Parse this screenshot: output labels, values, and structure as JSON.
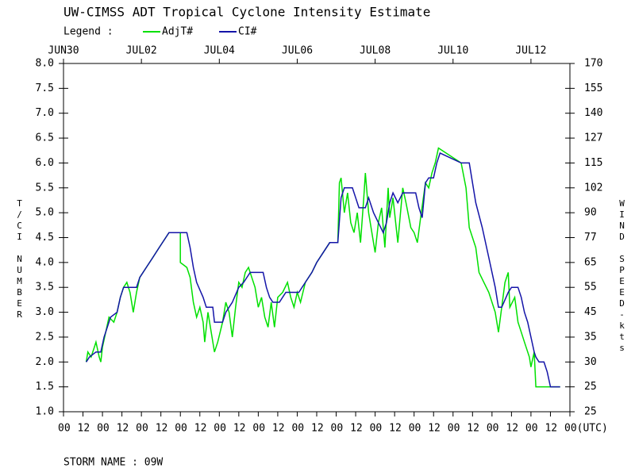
{
  "chart_data": {
    "type": "line",
    "title": "UW-CIMSS ADT Tropical Cyclone Intensity Estimate",
    "legend_label": "Legend :",
    "y_label": "T/CI NUMBER",
    "y2_label": "WIND SPEED-kts",
    "footer": "STORM NAME : 09W",
    "xlim": [
      0,
      312
    ],
    "xticks": [
      {
        "value": 0,
        "label": "00"
      },
      12,
      {
        "value": 24,
        "label": "00"
      },
      {
        "value": 36,
        "label": "12"
      },
      {
        "value": 48,
        "label": "00"
      },
      {
        "value": 60,
        "label": "12"
      },
      {
        "value": 72,
        "label": "00"
      },
      {
        "value": 84,
        "label": "12"
      },
      {
        "value": 96,
        "label": "00"
      },
      {
        "value": 108,
        "label": "12"
      },
      {
        "value": 120,
        "label": "00"
      },
      {
        "value": 132,
        "label": "12"
      },
      {
        "value": 144,
        "label": "00"
      },
      {
        "value": 156,
        "label": "12"
      },
      {
        "value": 168,
        "label": "00"
      },
      {
        "value": 180,
        "label": "12"
      },
      {
        "value": 192,
        "label": "00"
      },
      {
        "value": 204,
        "label": "12"
      },
      {
        "value": 216,
        "label": "00"
      },
      {
        "value": 228,
        "label": "12"
      },
      {
        "value": 240,
        "label": "00"
      },
      {
        "value": 252,
        "label": "12"
      },
      {
        "value": 264,
        "label": "00"
      },
      {
        "value": 276,
        "label": "12"
      },
      {
        "value": 288,
        "label": "00"
      },
      {
        "value": 300,
        "label": "12"
      },
      {
        "value": 312,
        "label": "00(UTC)"
      }
    ],
    "x2ticks": [
      {
        "value": 0,
        "label": "JUN30"
      },
      {
        "value": 48,
        "label": "JUL02"
      },
      {
        "value": 96,
        "label": "JUL04"
      },
      {
        "value": 144,
        "label": "JUL06"
      },
      {
        "value": 192,
        "label": "JUL08"
      },
      {
        "value": 240,
        "label": "JUL10"
      },
      {
        "value": 288,
        "label": "JUL12"
      }
    ],
    "ylim": [
      1,
      8
    ],
    "yticks": [
      {
        "value": 1,
        "label": "1.0"
      },
      1.5,
      {
        "value": 2,
        "label": "2.0"
      },
      2.5,
      {
        "value": 3,
        "label": "3.0"
      },
      3.5,
      {
        "value": 4,
        "label": "4.0"
      },
      4.5,
      {
        "value": 5,
        "label": "5.0"
      },
      5.5,
      {
        "value": 6,
        "label": "6.0"
      },
      6.5,
      {
        "value": 7,
        "label": "7.0"
      },
      7.5,
      {
        "value": 8,
        "label": "8.0"
      }
    ],
    "wind_speed_labels": [
      25,
      25,
      30,
      35,
      45,
      55,
      65,
      77,
      90,
      102,
      115,
      127,
      140,
      155,
      170
    ],
    "series": [
      {
        "name": "AdjT#",
        "color": "#00e000",
        "x": [
          14,
          15,
          17,
          19,
          20,
          22,
          23,
          24,
          26,
          28,
          31,
          33,
          35,
          37,
          39,
          41,
          43,
          45,
          47,
          51,
          55,
          59,
          63,
          65,
          72,
          72,
          76,
          78,
          80,
          82,
          84,
          86,
          87,
          89,
          91,
          93,
          95,
          98,
          100,
          102,
          104,
          106,
          108,
          110,
          112,
          114,
          116,
          118,
          120,
          122,
          124,
          126,
          128,
          130,
          132,
          135,
          138,
          140,
          142,
          144,
          146,
          149,
          153,
          156,
          160,
          164,
          169,
          170,
          171,
          173,
          175,
          177,
          179,
          181,
          183,
          185,
          186,
          188,
          190,
          192,
          194,
          196,
          198,
          200,
          201,
          203,
          206,
          209,
          211,
          214,
          216,
          218,
          220,
          223,
          225,
          227,
          229,
          231,
          245,
          248,
          250,
          252,
          254,
          256,
          259,
          262,
          266,
          268,
          270,
          272,
          274,
          275,
          278,
          280,
          282,
          284,
          287,
          288,
          290,
          291,
          306
        ],
        "values": [
          2.0,
          2.2,
          2.1,
          2.3,
          2.4,
          2.1,
          2.0,
          2.3,
          2.6,
          2.9,
          2.8,
          3.0,
          3.3,
          3.5,
          3.6,
          3.4,
          3.0,
          3.4,
          3.7,
          3.9,
          4.1,
          4.3,
          4.5,
          4.6,
          4.6,
          4.0,
          3.9,
          3.7,
          3.2,
          2.9,
          3.1,
          2.8,
          2.4,
          3.0,
          2.6,
          2.2,
          2.4,
          2.8,
          3.2,
          3.0,
          2.5,
          3.1,
          3.6,
          3.5,
          3.8,
          3.9,
          3.7,
          3.5,
          3.1,
          3.3,
          2.9,
          2.7,
          3.2,
          2.7,
          3.3,
          3.4,
          3.6,
          3.3,
          3.1,
          3.4,
          3.2,
          3.6,
          3.8,
          4.0,
          4.2,
          4.4,
          4.4,
          5.6,
          5.7,
          5.0,
          5.4,
          4.8,
          4.6,
          5.0,
          4.4,
          5.3,
          5.8,
          5.0,
          4.6,
          4.2,
          4.8,
          5.1,
          4.3,
          5.5,
          4.9,
          5.3,
          4.4,
          5.5,
          5.2,
          4.7,
          4.6,
          4.4,
          4.9,
          5.6,
          5.5,
          5.8,
          6.0,
          6.3,
          6.0,
          5.5,
          4.7,
          4.5,
          4.3,
          3.8,
          3.6,
          3.4,
          3.0,
          2.6,
          3.1,
          3.6,
          3.8,
          3.1,
          3.3,
          2.8,
          2.6,
          2.4,
          2.1,
          1.9,
          2.2,
          1.5,
          1.5
        ]
      },
      {
        "name": "CI#",
        "color": "#1414a8",
        "x": [
          14,
          16,
          20,
          23,
          25,
          27,
          29,
          33,
          35,
          37,
          45,
          47,
          51,
          55,
          59,
          63,
          65,
          76,
          78,
          80,
          82,
          86,
          88,
          92,
          93,
          98,
          100,
          104,
          108,
          111,
          115,
          123,
          125,
          127,
          129,
          133,
          137,
          145,
          149,
          153,
          156,
          160,
          164,
          169,
          171,
          173,
          178,
          180,
          182,
          186,
          188,
          191,
          194,
          197,
          199,
          201,
          203,
          206,
          209,
          217,
          219,
          221,
          223,
          225,
          228,
          230,
          232,
          245,
          250,
          252,
          254,
          258,
          262,
          266,
          268,
          270,
          274,
          276,
          280,
          282,
          284,
          286,
          288,
          290,
          291,
          293,
          296,
          298,
          300,
          306
        ],
        "values": [
          2.0,
          2.1,
          2.2,
          2.2,
          2.5,
          2.7,
          2.9,
          3.0,
          3.3,
          3.5,
          3.5,
          3.7,
          3.9,
          4.1,
          4.3,
          4.5,
          4.6,
          4.6,
          4.3,
          3.9,
          3.6,
          3.3,
          3.1,
          3.1,
          2.8,
          2.8,
          3.0,
          3.2,
          3.5,
          3.6,
          3.8,
          3.8,
          3.5,
          3.3,
          3.2,
          3.2,
          3.4,
          3.4,
          3.6,
          3.8,
          4.0,
          4.2,
          4.4,
          4.4,
          5.3,
          5.5,
          5.5,
          5.3,
          5.1,
          5.1,
          5.3,
          5.0,
          4.8,
          4.6,
          4.8,
          5.2,
          5.4,
          5.2,
          5.4,
          5.4,
          5.1,
          4.9,
          5.6,
          5.7,
          5.7,
          6.0,
          6.2,
          6.0,
          6.0,
          5.6,
          5.2,
          4.7,
          4.1,
          3.5,
          3.1,
          3.1,
          3.4,
          3.5,
          3.5,
          3.3,
          3.0,
          2.8,
          2.5,
          2.2,
          2.1,
          2.0,
          2.0,
          1.8,
          1.5,
          1.5
        ]
      }
    ]
  }
}
